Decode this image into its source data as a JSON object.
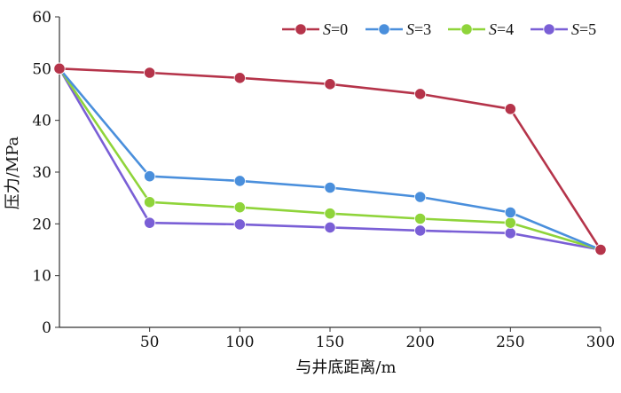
{
  "chart_data": {
    "type": "line",
    "title": "",
    "xlabel": "与井底距离/m",
    "ylabel": "压力/MPa",
    "x": [
      0,
      50,
      100,
      150,
      200,
      250,
      300
    ],
    "x_tick_labels": [
      "50",
      "100",
      "150",
      "200",
      "250",
      "300"
    ],
    "y_tick_labels": [
      "0",
      "10",
      "20",
      "30",
      "40",
      "50",
      "60"
    ],
    "xlim": [
      0,
      300
    ],
    "ylim": [
      0,
      60
    ],
    "grid": false,
    "legend_position": "top-right",
    "series": [
      {
        "name": "S=0",
        "legend_italic": "S",
        "legend_rest": "=0",
        "color": "#b5344a",
        "values": [
          50,
          49.2,
          48.2,
          47.0,
          45.1,
          42.2,
          15.0
        ]
      },
      {
        "name": "S=3",
        "legend_italic": "S",
        "legend_rest": "=3",
        "color": "#4a8fdc",
        "values": [
          50,
          29.2,
          28.3,
          27.0,
          25.2,
          22.2,
          15.0
        ]
      },
      {
        "name": "S=4",
        "legend_italic": "S",
        "legend_rest": "=4",
        "color": "#8fd43a",
        "values": [
          50,
          24.2,
          23.2,
          22.0,
          21.0,
          20.2,
          15.0
        ]
      },
      {
        "name": "S=5",
        "legend_italic": "S",
        "legend_rest": "=5",
        "color": "#7a5fd6",
        "values": [
          50,
          20.2,
          19.9,
          19.3,
          18.7,
          18.2,
          15.0
        ]
      }
    ]
  }
}
